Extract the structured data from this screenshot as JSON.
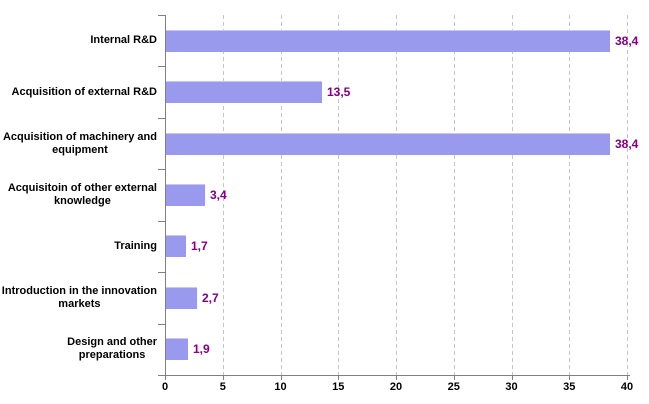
{
  "chart_data": {
    "type": "bar",
    "orientation": "horizontal",
    "title": "",
    "categories": [
      "Internal R&D",
      "Acquisition of external R&D",
      "Acquisition of machinery and equipment",
      "Acquisitoin of other external knowledge",
      "Training",
      "Introduction in the innovation markets",
      "Design and other preparations"
    ],
    "category_display": [
      "Internal R&D",
      "Acquisition of external R&D",
      "Acquisition of machinery and\nequipment",
      "Acquisitoin of other external\nknowledge",
      "Training",
      "Introduction in the innovation\nmarkets",
      "Design and other\npreparations"
    ],
    "values": [
      38.4,
      13.5,
      38.4,
      3.4,
      1.7,
      2.7,
      1.9
    ],
    "value_labels": [
      "38,4",
      "13,5",
      "38,4",
      "3,4",
      "1,7",
      "2,7",
      "1,9"
    ],
    "xlim": [
      0,
      40
    ],
    "x_ticks": [
      "0",
      "5",
      "10",
      "15",
      "20",
      "25",
      "30",
      "35",
      "40"
    ],
    "grid": "vertical-dashed",
    "legend": false,
    "colors": {
      "bar": "#9999EE",
      "value_label": "#800080",
      "axis": "#808080",
      "gridline": "#C6C6C6",
      "text": "#000000",
      "background": "#FFFFFF"
    }
  }
}
